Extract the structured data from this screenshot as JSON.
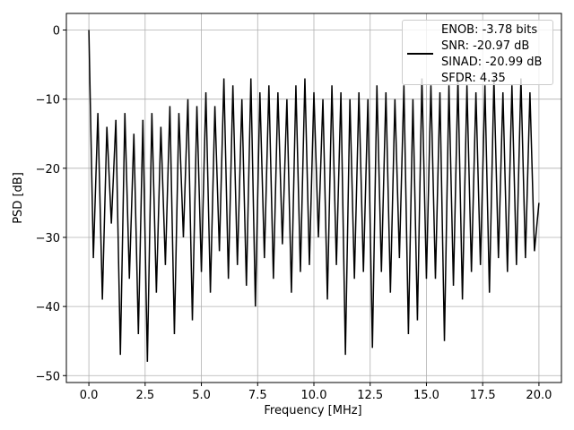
{
  "chart_data": {
    "type": "line",
    "xlabel": "Frequency [MHz]",
    "ylabel": "PSD [dB]",
    "x": [
      0,
      0.2,
      0.4,
      0.6,
      0.8,
      1,
      1.2,
      1.4,
      1.6,
      1.8,
      2,
      2.2,
      2.4,
      2.6,
      2.8,
      3,
      3.2,
      3.4,
      3.6,
      3.8,
      4,
      4.2,
      4.4,
      4.6,
      4.8,
      5,
      5.2,
      5.4,
      5.6,
      5.8,
      6,
      6.2,
      6.4,
      6.6,
      6.8,
      7,
      7.2,
      7.4,
      7.6,
      7.8,
      8,
      8.2,
      8.4,
      8.6,
      8.8,
      9,
      9.2,
      9.4,
      9.6,
      9.8,
      10,
      10.2,
      10.4,
      10.6,
      10.8,
      11,
      11.2,
      11.4,
      11.6,
      11.8,
      12,
      12.2,
      12.4,
      12.6,
      12.8,
      13,
      13.2,
      13.4,
      13.6,
      13.8,
      14,
      14.2,
      14.4,
      14.6,
      14.8,
      15,
      15.2,
      15.4,
      15.6,
      15.8,
      16,
      16.2,
      16.4,
      16.6,
      16.8,
      17,
      17.2,
      17.4,
      17.6,
      17.8,
      18,
      18.2,
      18.4,
      18.6,
      18.8,
      19,
      19.2,
      19.4,
      19.6,
      19.8,
      20
    ],
    "series": [
      {
        "name": "ENOB: -3.78 bits\nSNR: -20.97 dB\nSINAD: -20.99 dB\nSFDR: 4.35",
        "color": "#000000",
        "values": [
          0,
          -33,
          -12,
          -39,
          -14,
          -28,
          -13,
          -47,
          -12,
          -36,
          -15,
          -44,
          -13,
          -48,
          -12,
          -38,
          -14,
          -34,
          -11,
          -44,
          -12,
          -30,
          -10,
          -42,
          -11,
          -35,
          -9,
          -38,
          -11,
          -32,
          -7,
          -36,
          -8,
          -34,
          -10,
          -37,
          -7,
          -40,
          -9,
          -33,
          -8,
          -36,
          -9,
          -31,
          -10,
          -38,
          -8,
          -35,
          -7,
          -34,
          -9,
          -30,
          -10,
          -39,
          -8,
          -34,
          -9,
          -47,
          -10,
          -36,
          -9,
          -35,
          -10,
          -46,
          -8,
          -35,
          -9,
          -38,
          -10,
          -33,
          -8,
          -44,
          -10,
          -42,
          -7,
          -36,
          -8,
          -36,
          -9,
          -45,
          -8,
          -37,
          -7,
          -39,
          -8,
          -35,
          -9,
          -34,
          -8,
          -38,
          -7,
          -33,
          -9,
          -35,
          -8,
          -34,
          -7,
          -33,
          -9,
          -32,
          -25
        ]
      }
    ],
    "xlim": [
      -1,
      21
    ],
    "ylim": [
      -51,
      2.4
    ],
    "xticks": [
      {
        "value": 0,
        "label": "0.0"
      },
      {
        "value": 2.5,
        "label": "2.5"
      },
      {
        "value": 5,
        "label": "5.0"
      },
      {
        "value": 7.5,
        "label": "7.5"
      },
      {
        "value": 10,
        "label": "10.0"
      },
      {
        "value": 12.5,
        "label": "12.5"
      },
      {
        "value": 15,
        "label": "15.0"
      },
      {
        "value": 17.5,
        "label": "17.5"
      },
      {
        "value": 20,
        "label": "20.0"
      }
    ],
    "yticks": [
      0,
      {
        "value": -10,
        "label": "−10"
      },
      {
        "value": -20,
        "label": "−20"
      },
      {
        "value": -30,
        "label": "−30"
      },
      {
        "value": -40,
        "label": "−40"
      },
      {
        "value": -50,
        "label": "−50"
      }
    ],
    "grid": true,
    "legend": "upper right"
  }
}
